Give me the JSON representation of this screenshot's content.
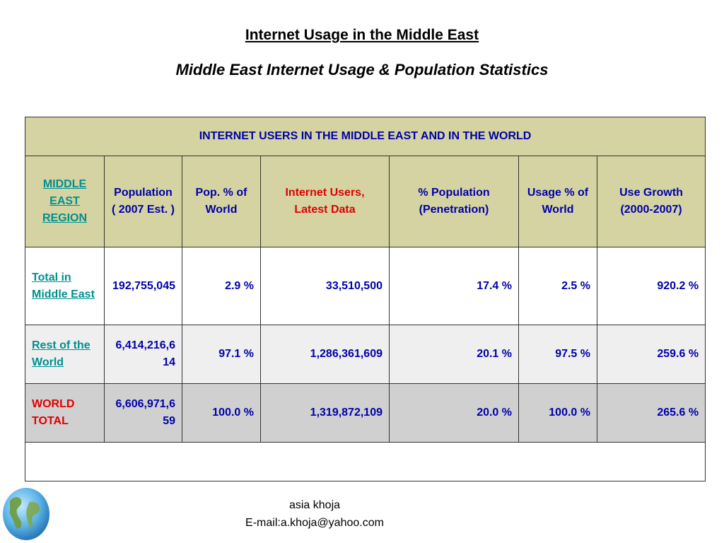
{
  "page": {
    "title": "Internet Usage in the Middle East",
    "subtitle": "Middle East Internet Usage & Population Statistics"
  },
  "table": {
    "banner": "INTERNET USERS IN THE MIDDLE EAST AND IN THE WORLD",
    "headers": {
      "region": "MIDDLE EAST REGION",
      "population": "Population ( 2007 Est. )",
      "pop_pct": "Pop. % of World",
      "internet_users": "Internet Users, Latest Data",
      "penetration": "% Population (Penetration)",
      "usage_pct": "Usage % of World",
      "growth": "Use Growth (2000-2007)"
    },
    "rows": [
      {
        "region": "Total in Middle East",
        "population": "192,755,045",
        "pop_pct": "2.9 %",
        "internet_users": "33,510,500",
        "penetration": "17.4 %",
        "usage_pct": "2.5 %",
        "growth": "920.2 %"
      },
      {
        "region": "Rest of the World",
        "population": "6,414,216,614",
        "pop_pct": "97.1 %",
        "internet_users": "1,286,361,609",
        "penetration": "20.1 %",
        "usage_pct": "97.5 %",
        "growth": "259.6 %"
      },
      {
        "region": "WORLD TOTAL",
        "population": "6,606,971,659",
        "pop_pct": "100.0 %",
        "internet_users": "1,319,872,109",
        "penetration": "20.0 %",
        "usage_pct": "100.0 %",
        "growth": "265.6 %"
      }
    ]
  },
  "footer": {
    "author": "asia khoja",
    "email": "E-mail:a.khoja@yahoo.com"
  },
  "colors": {
    "header_bg": "#d4d3a1",
    "value_text": "#0000aa",
    "link_text": "#008f8f",
    "highlight_red": "#e00000"
  },
  "icons": {
    "globe": "globe-icon"
  }
}
